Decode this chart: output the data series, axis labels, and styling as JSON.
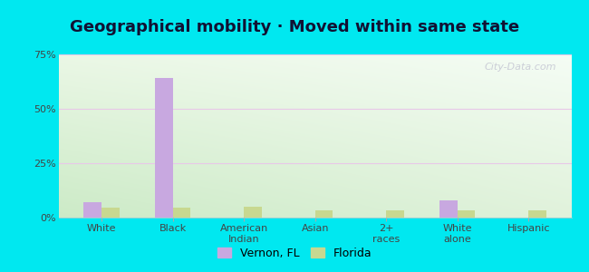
{
  "title": "Geographical mobility · Moved within same state",
  "categories": [
    "White",
    "Black",
    "American\nIndian",
    "Asian",
    "2+\nraces",
    "White\nalone",
    "Hispanic"
  ],
  "vernon_values": [
    7.0,
    64.0,
    0.0,
    0.0,
    0.0,
    8.0,
    0.0
  ],
  "florida_values": [
    4.5,
    4.5,
    5.0,
    3.5,
    3.5,
    3.5,
    3.5
  ],
  "vernon_color": "#c8a8e0",
  "florida_color": "#c8d890",
  "ylim": [
    0,
    75
  ],
  "yticks": [
    0,
    25,
    50,
    75
  ],
  "ytick_labels": [
    "0%",
    "25%",
    "50%",
    "75%"
  ],
  "bar_width": 0.25,
  "bg_color_tl": "#eaf5e8",
  "bg_color_tr": "#f5fbf5",
  "bg_color_bl": "#c8e8c0",
  "bg_color_br": "#ddf0e0",
  "outer_background": "#00e8f0",
  "title_fontsize": 13,
  "axis_fontsize": 8,
  "legend_fontsize": 9,
  "watermark": "City-Data.com",
  "grid_color": "#e8c8e8",
  "tick_color": "#888888",
  "label_color": "#444444"
}
